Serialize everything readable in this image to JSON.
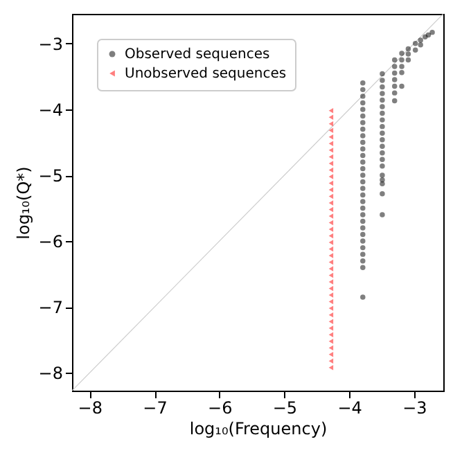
{
  "chart_data": {
    "type": "scatter",
    "xlabel": "log₁₀(Frequency)",
    "ylabel": "log₁₀(Q*)",
    "xlim": [
      -8.27,
      -2.55
    ],
    "ylim": [
      -8.27,
      -2.55
    ],
    "xticks": [
      -8,
      -7,
      -6,
      -5,
      -4,
      -3
    ],
    "yticks": [
      -8,
      -7,
      -6,
      -5,
      -4,
      -3
    ],
    "grid": false,
    "legend": "top left",
    "series": [
      {
        "type": "line",
        "color": "#cccccc",
        "marker": "none",
        "x": [
          -8.27,
          -2.55
        ],
        "values": [
          -8.27,
          -2.55
        ]
      },
      {
        "name": "Observed sequences",
        "color": "#000000",
        "marker": "circle",
        "x": [
          -3.79,
          -3.79,
          -3.79,
          -3.79,
          -3.79,
          -3.79,
          -3.79,
          -3.79,
          -3.79,
          -3.79,
          -3.79,
          -3.79,
          -3.79,
          -3.79,
          -3.79,
          -3.79,
          -3.79,
          -3.79,
          -3.79,
          -3.79,
          -3.79,
          -3.79,
          -3.79,
          -3.79,
          -3.79,
          -3.79,
          -3.79,
          -3.79,
          -3.79,
          -3.79,
          -3.49,
          -3.49,
          -3.49,
          -3.49,
          -3.49,
          -3.49,
          -3.49,
          -3.49,
          -3.49,
          -3.49,
          -3.49,
          -3.49,
          -3.49,
          -3.49,
          -3.49,
          -3.49,
          -3.49,
          -3.49,
          -3.49,
          -3.49,
          -3.3,
          -3.3,
          -3.3,
          -3.3,
          -3.3,
          -3.3,
          -3.3,
          -3.19,
          -3.19,
          -3.19,
          -3.19,
          -3.19,
          -3.09,
          -3.09,
          -3.09,
          -2.98,
          -2.98,
          -2.9,
          -2.9,
          -2.83,
          -2.78,
          -2.72
        ],
        "values": [
          -3.6,
          -3.7,
          -3.8,
          -3.9,
          -4.0,
          -4.1,
          -4.2,
          -4.3,
          -4.4,
          -4.5,
          -4.6,
          -4.7,
          -4.8,
          -4.9,
          -5.0,
          -5.1,
          -5.2,
          -5.3,
          -5.4,
          -5.5,
          -5.6,
          -5.7,
          -5.8,
          -5.9,
          -6.0,
          -6.1,
          -6.2,
          -6.3,
          -6.4,
          -6.85,
          -3.46,
          -3.56,
          -3.66,
          -3.76,
          -3.86,
          -3.96,
          -4.06,
          -4.16,
          -4.26,
          -4.36,
          -4.46,
          -4.56,
          -4.66,
          -4.76,
          -4.86,
          -5.0,
          -5.07,
          -5.13,
          -5.28,
          -5.6,
          -3.25,
          -3.35,
          -3.45,
          -3.55,
          -3.65,
          -3.75,
          -3.87,
          -3.15,
          -3.25,
          -3.35,
          -3.44,
          -3.65,
          -3.08,
          -3.16,
          -3.25,
          -3.0,
          -3.1,
          -2.95,
          -3.02,
          -2.9,
          -2.87,
          -2.83
        ]
      },
      {
        "name": "Unobserved sequences",
        "color": "#ff0000",
        "marker": "triangle",
        "x": [
          -4.28,
          -4.28,
          -4.28,
          -4.28,
          -4.28,
          -4.28,
          -4.28,
          -4.28,
          -4.28,
          -4.28,
          -4.28,
          -4.28,
          -4.28,
          -4.28,
          -4.28,
          -4.28,
          -4.28,
          -4.28,
          -4.28,
          -4.28,
          -4.28,
          -4.28,
          -4.28,
          -4.28,
          -4.28,
          -4.28,
          -4.28,
          -4.28,
          -4.28,
          -4.28,
          -4.28,
          -4.28,
          -4.28,
          -4.28,
          -4.28,
          -4.28,
          -4.28,
          -4.28,
          -4.28,
          -4.28
        ],
        "values": [
          -4.02,
          -4.12,
          -4.22,
          -4.32,
          -4.42,
          -4.52,
          -4.62,
          -4.72,
          -4.82,
          -4.92,
          -5.02,
          -5.12,
          -5.22,
          -5.32,
          -5.42,
          -5.52,
          -5.62,
          -5.72,
          -5.82,
          -5.92,
          -6.02,
          -6.12,
          -6.22,
          -6.32,
          -6.42,
          -6.52,
          -6.62,
          -6.72,
          -6.82,
          -6.92,
          -7.02,
          -7.12,
          -7.22,
          -7.32,
          -7.42,
          -7.52,
          -7.62,
          -7.72,
          -7.82,
          -7.92
        ]
      }
    ]
  }
}
